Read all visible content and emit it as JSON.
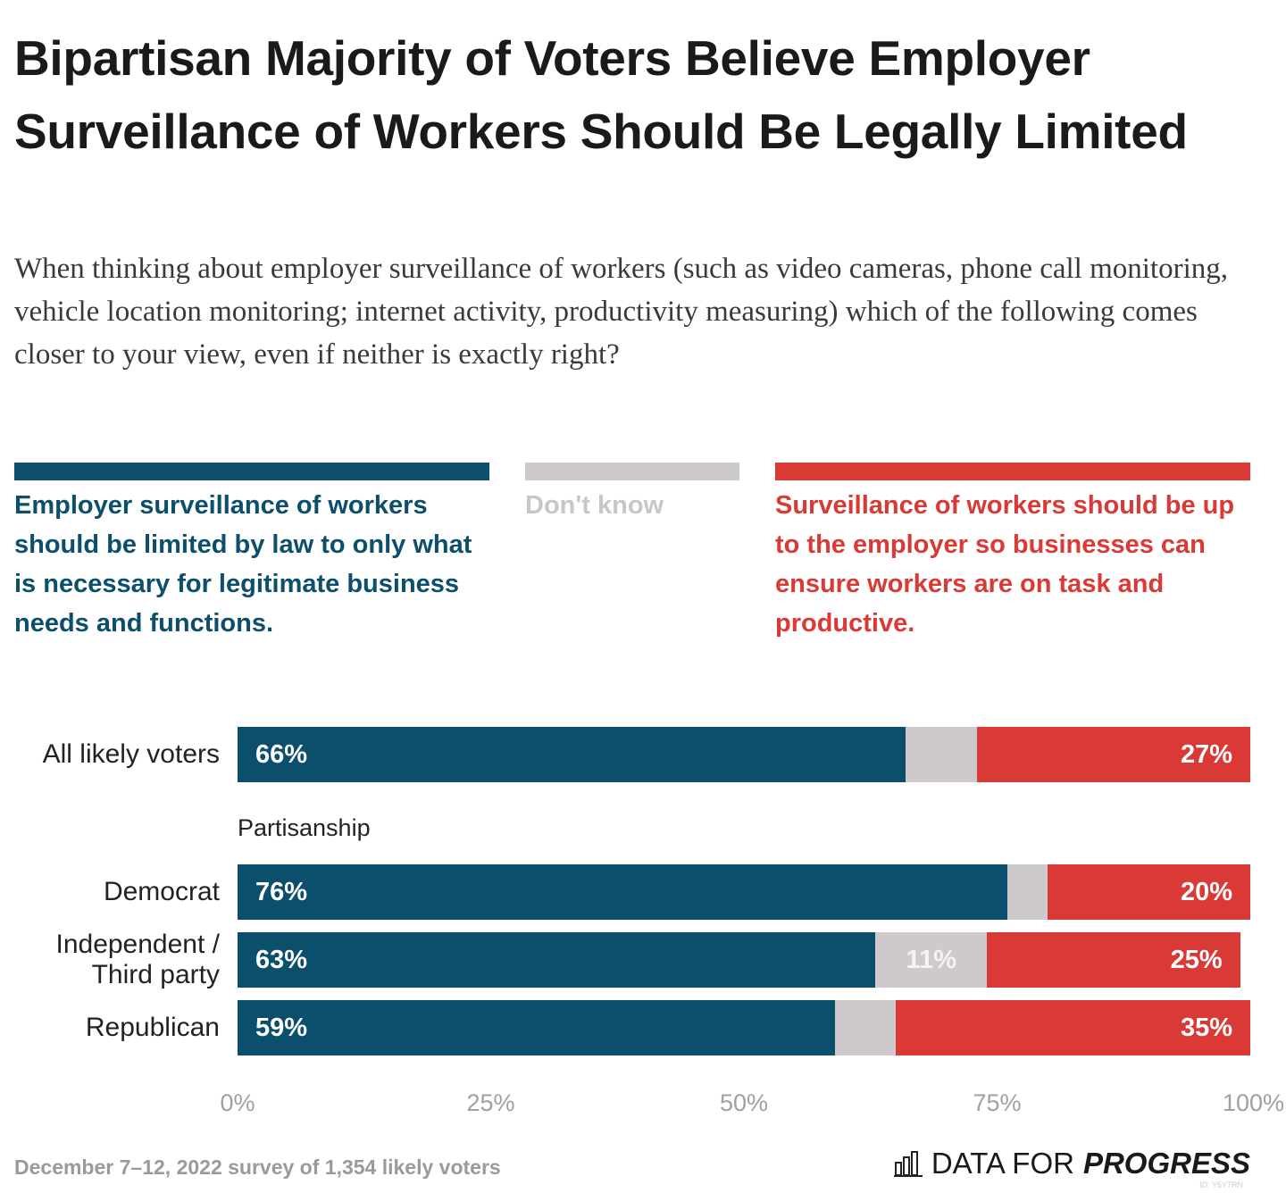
{
  "chart_data": {
    "type": "stacked_bar_horizontal",
    "title": "Bipartisan Majority of Voters Believe Employer Surveillance of Workers Should Be Legally Limited",
    "subtitle": "When thinking about employer surveillance of workers (such as video cameras, phone call monitoring, vehicle location monitoring; internet activity, productivity measuring) which of the following comes closer to your view, even if neither is exactly right?",
    "categories": [
      "All likely voters",
      "Democrat",
      "Independent / Third party",
      "Republican"
    ],
    "annotations": [
      "Partisanship"
    ],
    "series": [
      {
        "name": "Employer surveillance of workers should be limited by law to only what is necessary for legitimate business needs and functions.",
        "color": "#0b4f6c",
        "values": [
          66,
          76,
          63,
          59
        ],
        "value_labels": [
          "66%",
          "76%",
          "63%",
          "59%"
        ]
      },
      {
        "name": "Don't know",
        "color": "#cdc9cc",
        "values": [
          7,
          4,
          11,
          6
        ],
        "value_labels": [
          null,
          null,
          "11%",
          null
        ]
      },
      {
        "name": "Surveillance of workers should be up to the employer so businesses can ensure workers are on task and productive.",
        "color": "#d93a36",
        "values": [
          27,
          20,
          25,
          35
        ],
        "value_labels": [
          "27%",
          "20%",
          "25%",
          "35%"
        ]
      }
    ],
    "xlim": [
      0,
      100
    ],
    "xticks": [
      {
        "value": 0,
        "label": "0%"
      },
      {
        "value": 25,
        "label": "25%"
      },
      {
        "value": 50,
        "label": "50%"
      },
      {
        "value": 75,
        "label": "75%"
      },
      {
        "value": 100,
        "label": "100%"
      }
    ],
    "source": "December 7–12, 2022 survey of 1,354 likely voters",
    "brand": {
      "prefix": "DATA FOR",
      "name": "PROGRESS"
    },
    "id_note": "ID: Y5Y7RN"
  }
}
